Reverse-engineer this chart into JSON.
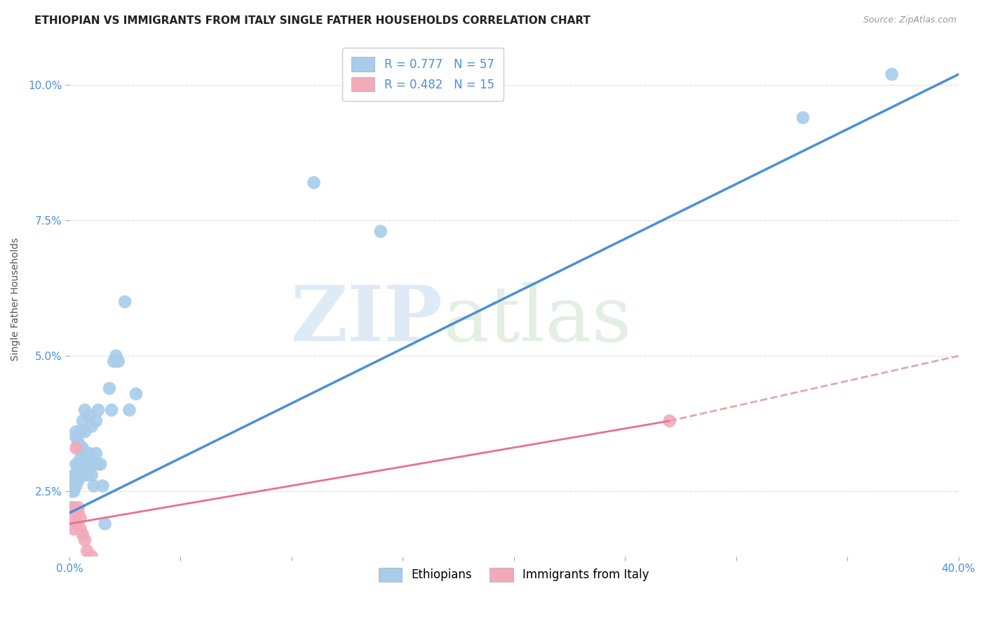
{
  "title": "ETHIOPIAN VS IMMIGRANTS FROM ITALY SINGLE FATHER HOUSEHOLDS CORRELATION CHART",
  "source": "Source: ZipAtlas.com",
  "ylabel": "Single Father Households",
  "xlim": [
    0.0,
    0.4
  ],
  "ylim": [
    0.013,
    0.108
  ],
  "xticks": [
    0.0,
    0.05,
    0.1,
    0.15,
    0.2,
    0.25,
    0.3,
    0.35,
    0.4
  ],
  "yticks": [
    0.025,
    0.05,
    0.075,
    0.1
  ],
  "ytick_labels": [
    "2.5%",
    "5.0%",
    "7.5%",
    "10.0%"
  ],
  "xtick_labels": [
    "0.0%",
    "",
    "",
    "",
    "",
    "",
    "",
    "",
    "40.0%"
  ],
  "blue_R": 0.777,
  "blue_N": 57,
  "pink_R": 0.482,
  "pink_N": 15,
  "blue_color": "#A8CCEA",
  "pink_color": "#F2AABB",
  "blue_line_color": "#4A90D9",
  "pink_line_color": "#E87090",
  "pink_dash_color": "#DDAAAA",
  "blue_scatter": [
    [
      0.001,
      0.027
    ],
    [
      0.001,
      0.026
    ],
    [
      0.001,
      0.026
    ],
    [
      0.001,
      0.025
    ],
    [
      0.002,
      0.027
    ],
    [
      0.002,
      0.026
    ],
    [
      0.002,
      0.025
    ],
    [
      0.002,
      0.027
    ],
    [
      0.002,
      0.028
    ],
    [
      0.003,
      0.035
    ],
    [
      0.003,
      0.036
    ],
    [
      0.003,
      0.027
    ],
    [
      0.003,
      0.028
    ],
    [
      0.003,
      0.026
    ],
    [
      0.003,
      0.03
    ],
    [
      0.004,
      0.034
    ],
    [
      0.004,
      0.027
    ],
    [
      0.004,
      0.03
    ],
    [
      0.004,
      0.028
    ],
    [
      0.005,
      0.033
    ],
    [
      0.005,
      0.031
    ],
    [
      0.005,
      0.03
    ],
    [
      0.005,
      0.036
    ],
    [
      0.006,
      0.032
    ],
    [
      0.006,
      0.028
    ],
    [
      0.006,
      0.038
    ],
    [
      0.006,
      0.033
    ],
    [
      0.007,
      0.036
    ],
    [
      0.007,
      0.03
    ],
    [
      0.007,
      0.04
    ],
    [
      0.008,
      0.028
    ],
    [
      0.008,
      0.03
    ],
    [
      0.009,
      0.039
    ],
    [
      0.009,
      0.032
    ],
    [
      0.01,
      0.028
    ],
    [
      0.01,
      0.037
    ],
    [
      0.01,
      0.03
    ],
    [
      0.011,
      0.026
    ],
    [
      0.012,
      0.038
    ],
    [
      0.012,
      0.032
    ],
    [
      0.013,
      0.03
    ],
    [
      0.013,
      0.04
    ],
    [
      0.014,
      0.03
    ],
    [
      0.015,
      0.026
    ],
    [
      0.016,
      0.019
    ],
    [
      0.018,
      0.044
    ],
    [
      0.019,
      0.04
    ],
    [
      0.02,
      0.049
    ],
    [
      0.021,
      0.05
    ],
    [
      0.022,
      0.049
    ],
    [
      0.025,
      0.06
    ],
    [
      0.027,
      0.04
    ],
    [
      0.03,
      0.043
    ],
    [
      0.11,
      0.082
    ],
    [
      0.14,
      0.073
    ],
    [
      0.33,
      0.094
    ],
    [
      0.37,
      0.102
    ]
  ],
  "pink_scatter": [
    [
      0.001,
      0.022
    ],
    [
      0.001,
      0.02
    ],
    [
      0.002,
      0.022
    ],
    [
      0.002,
      0.018
    ],
    [
      0.003,
      0.033
    ],
    [
      0.003,
      0.019
    ],
    [
      0.004,
      0.021
    ],
    [
      0.004,
      0.022
    ],
    [
      0.005,
      0.02
    ],
    [
      0.005,
      0.018
    ],
    [
      0.006,
      0.017
    ],
    [
      0.007,
      0.016
    ],
    [
      0.008,
      0.014
    ],
    [
      0.01,
      0.013
    ],
    [
      0.27,
      0.038
    ]
  ],
  "blue_line": [
    [
      0.0,
      0.021
    ],
    [
      0.4,
      0.102
    ]
  ],
  "pink_line_solid": [
    [
      0.0,
      0.019
    ],
    [
      0.27,
      0.038
    ]
  ],
  "pink_line_dash": [
    [
      0.27,
      0.038
    ],
    [
      0.4,
      0.05
    ]
  ],
  "watermark_zip": "ZIP",
  "watermark_atlas": "atlas",
  "background_color": "#FFFFFF",
  "grid_color": "#DDDDDD",
  "title_fontsize": 11,
  "axis_label_fontsize": 10,
  "tick_fontsize": 11,
  "legend_fontsize": 12
}
